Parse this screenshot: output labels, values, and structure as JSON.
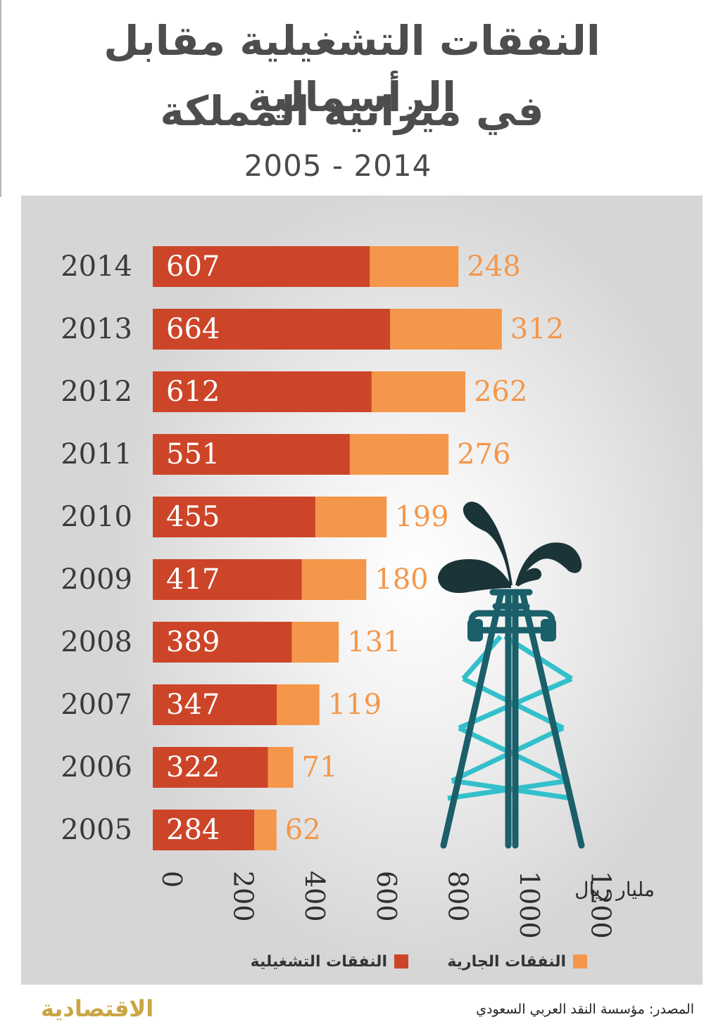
{
  "header": {
    "title_line1": "النفقات التشغيلية مقابل الرأسمالية",
    "title_line2": "في ميزانية المملكة",
    "years_range": "2005 - 2014"
  },
  "colors": {
    "operating": "#cd4528",
    "current": "#f4974a",
    "tower_dark": "#1a5f6a",
    "tower_light": "#33c0cb",
    "oil": "#1b3438"
  },
  "legend": {
    "operating_label": "النفقات التشغيلية",
    "current_label": "النفقات الجارية"
  },
  "unit_label": "مليار ريال",
  "footer": {
    "logo": "الاقتصادية",
    "source": "المصدر: مؤسسة النقد العربي السعودي"
  },
  "chart_data": {
    "type": "bar",
    "orientation": "horizontal",
    "stacked": true,
    "categories": [
      "2014",
      "2013",
      "2012",
      "2011",
      "2010",
      "2009",
      "2008",
      "2007",
      "2006",
      "2005"
    ],
    "series": [
      {
        "name": "النفقات التشغيلية",
        "values": [
          607,
          664,
          612,
          551,
          455,
          417,
          389,
          347,
          322,
          284
        ]
      },
      {
        "name": "النفقات الجارية",
        "values": [
          248,
          312,
          262,
          276,
          199,
          180,
          131,
          119,
          71,
          62
        ]
      }
    ],
    "xticks": [
      0,
      200,
      400,
      600,
      800,
      1000,
      1200
    ],
    "xlim": [
      0,
      1200
    ],
    "xlabel": "مليار ريال",
    "grid": false,
    "legend_position": "bottom"
  }
}
